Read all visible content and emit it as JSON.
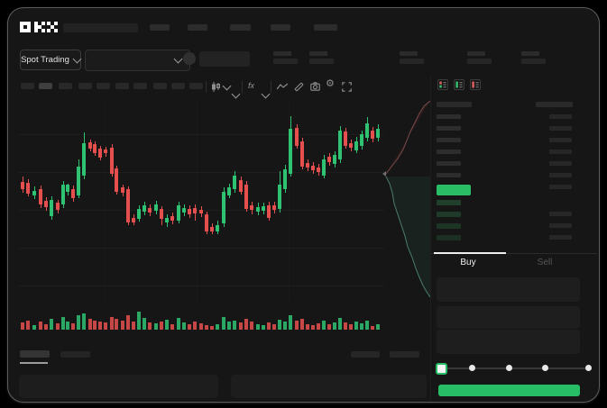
{
  "window": {
    "logo": "OKX"
  },
  "topnav": {
    "placeholder_count": 5
  },
  "header": {
    "market_selector_label": "Spot Trading",
    "stat_placeholder_count": 5
  },
  "toolbar": {
    "timeframe_placeholder_count": 10,
    "active_timeframe_index": 1,
    "icons": [
      "candle-style-icon",
      "chevron-down-icon",
      "indicators-fx-icon",
      "chevron-down-icon",
      "line-tool-icon",
      "measure-icon",
      "camera-icon",
      "settings-gear-icon",
      "fullscreen-icon"
    ]
  },
  "orderbook": {
    "mode_icons": [
      "book-combined-icon",
      "book-bids-icon",
      "book-asks-icon"
    ],
    "ask_row_count": 6,
    "bid_row_count": 4,
    "right_column_top_row_count": 7,
    "right_column_bottom_row_count": 3,
    "last_price_bar_color": "#2abd66"
  },
  "trade_panel": {
    "tabs": [
      {
        "label": "Buy",
        "active": true
      },
      {
        "label": "Sell",
        "active": false
      }
    ],
    "input_placeholder_count": 3,
    "slider_stops_percent": [
      0,
      25,
      50,
      75,
      100
    ],
    "slider_selected_index": 0,
    "submit_button_color": "#27bd66"
  },
  "colors": {
    "up_green": "#2fc273",
    "down_red": "#e5504f",
    "accent_green": "#27bd66",
    "window_bg": "#161616",
    "panel_bg": "#1e1e1e",
    "placeholder": "#292929",
    "bid_row_tint": "#1e3a28",
    "depth_ask_line": "#7d4a4c",
    "depth_bid_line": "#4a7d72"
  },
  "chart_data": {
    "type": "candlestick",
    "units": "px",
    "candles": [
      [
        3,
        86,
        92,
        100,
        104,
        "r"
      ],
      [
        9,
        89,
        93,
        105,
        108,
        "r"
      ],
      [
        16,
        97,
        102,
        107,
        111,
        "g"
      ],
      [
        23,
        96,
        100,
        117,
        121,
        "r"
      ],
      [
        29,
        109,
        113,
        120,
        124,
        "r"
      ],
      [
        35,
        108,
        112,
        130,
        134,
        "g"
      ],
      [
        42,
        112,
        115,
        123,
        127,
        "r"
      ],
      [
        48,
        91,
        95,
        117,
        121,
        "g"
      ],
      [
        53,
        94,
        95,
        103,
        107,
        "g"
      ],
      [
        59,
        96,
        100,
        110,
        114,
        "r"
      ],
      [
        65,
        67,
        75,
        107,
        110,
        "g"
      ],
      [
        71,
        37,
        49,
        85,
        89,
        "g"
      ],
      [
        78,
        45,
        48,
        55,
        58,
        "r"
      ],
      [
        83,
        47,
        50,
        60,
        63,
        "r"
      ],
      [
        89,
        52,
        55,
        65,
        68,
        "r"
      ],
      [
        95,
        53,
        56,
        60,
        64,
        "r"
      ],
      [
        102,
        50,
        54,
        83,
        86,
        "r"
      ],
      [
        107,
        74,
        77,
        103,
        106,
        "r"
      ],
      [
        114,
        95,
        98,
        104,
        108,
        "r"
      ],
      [
        120,
        97,
        100,
        137,
        140,
        "r"
      ],
      [
        126,
        128,
        132,
        137,
        140,
        "r"
      ],
      [
        132,
        118,
        122,
        133,
        136,
        "g"
      ],
      [
        138,
        114,
        118,
        125,
        129,
        "g"
      ],
      [
        144,
        117,
        121,
        126,
        130,
        "r"
      ],
      [
        151,
        113,
        117,
        124,
        128,
        "g"
      ],
      [
        157,
        119,
        122,
        133,
        140,
        "r"
      ],
      [
        163,
        128,
        132,
        137,
        142,
        "g"
      ],
      [
        169,
        126,
        130,
        135,
        139,
        "r"
      ],
      [
        176,
        114,
        118,
        135,
        138,
        "g"
      ],
      [
        182,
        117,
        121,
        126,
        130,
        "g"
      ],
      [
        188,
        118,
        122,
        128,
        132,
        "r"
      ],
      [
        194,
        117,
        121,
        127,
        135,
        "r"
      ],
      [
        201,
        119,
        123,
        127,
        131,
        "r"
      ],
      [
        207,
        125,
        128,
        147,
        150,
        "r"
      ],
      [
        213,
        138,
        142,
        147,
        150,
        "r"
      ],
      [
        219,
        135,
        140,
        147,
        150,
        "g"
      ],
      [
        226,
        98,
        103,
        138,
        142,
        "g"
      ],
      [
        232,
        94,
        98,
        107,
        110,
        "g"
      ],
      [
        238,
        80,
        85,
        100,
        104,
        "g"
      ],
      [
        245,
        86,
        90,
        103,
        106,
        "r"
      ],
      [
        251,
        91,
        95,
        122,
        125,
        "r"
      ],
      [
        257,
        114,
        118,
        123,
        128,
        "r"
      ],
      [
        264,
        115,
        120,
        125,
        129,
        "g"
      ],
      [
        270,
        115,
        119,
        124,
        128,
        "g"
      ],
      [
        276,
        114,
        118,
        132,
        135,
        "r"
      ],
      [
        282,
        114,
        118,
        123,
        127,
        "r"
      ],
      [
        288,
        80,
        95,
        122,
        126,
        "g"
      ],
      [
        294,
        73,
        78,
        100,
        104,
        "g"
      ],
      [
        300,
        19,
        33,
        83,
        86,
        "g"
      ],
      [
        307,
        28,
        32,
        52,
        55,
        "r"
      ],
      [
        313,
        43,
        47,
        75,
        78,
        "r"
      ],
      [
        319,
        67,
        71,
        76,
        80,
        "r"
      ],
      [
        325,
        70,
        74,
        79,
        83,
        "r"
      ],
      [
        331,
        72,
        76,
        81,
        85,
        "r"
      ],
      [
        337,
        62,
        67,
        85,
        88,
        "g"
      ],
      [
        343,
        60,
        64,
        70,
        74,
        "r"
      ],
      [
        349,
        58,
        62,
        72,
        76,
        "g"
      ],
      [
        355,
        30,
        35,
        67,
        71,
        "g"
      ],
      [
        361,
        32,
        36,
        52,
        55,
        "r"
      ],
      [
        367,
        45,
        49,
        54,
        58,
        "r"
      ],
      [
        373,
        42,
        47,
        57,
        60,
        "g"
      ],
      [
        379,
        35,
        39,
        52,
        56,
        "g"
      ],
      [
        385,
        20,
        27,
        43,
        47,
        "g"
      ],
      [
        391,
        31,
        35,
        44,
        48,
        "r"
      ],
      [
        397,
        28,
        33,
        43,
        47,
        "g"
      ]
    ],
    "volume": [
      8,
      10,
      5,
      9,
      6,
      12,
      7,
      14,
      9,
      7,
      16,
      18,
      12,
      10,
      9,
      8,
      14,
      12,
      10,
      16,
      9,
      20,
      13,
      8,
      7,
      9,
      11,
      6,
      13,
      8,
      6,
      9,
      7,
      5,
      4,
      6,
      14,
      9,
      10,
      8,
      12,
      9,
      6,
      5,
      8,
      6,
      11,
      9,
      16,
      10,
      12,
      6,
      5,
      7,
      10,
      6,
      8,
      13,
      8,
      6,
      9,
      7,
      10,
      4,
      6
    ],
    "depth": {
      "asks_line": [
        [
          53,
          0
        ],
        [
          46,
          6
        ],
        [
          41,
          14
        ],
        [
          36,
          24
        ],
        [
          31,
          34
        ],
        [
          27,
          44
        ],
        [
          23,
          54
        ],
        [
          17,
          64
        ],
        [
          10,
          73
        ],
        [
          4,
          81
        ]
      ],
      "bids_line": [
        [
          4,
          84
        ],
        [
          8,
          92
        ],
        [
          11,
          102
        ],
        [
          13,
          114
        ],
        [
          17,
          126
        ],
        [
          21,
          138
        ],
        [
          25,
          150
        ],
        [
          28,
          162
        ],
        [
          33,
          174
        ],
        [
          37,
          186
        ],
        [
          41,
          196
        ],
        [
          45,
          205
        ],
        [
          49,
          212
        ],
        [
          53,
          218
        ]
      ]
    }
  }
}
